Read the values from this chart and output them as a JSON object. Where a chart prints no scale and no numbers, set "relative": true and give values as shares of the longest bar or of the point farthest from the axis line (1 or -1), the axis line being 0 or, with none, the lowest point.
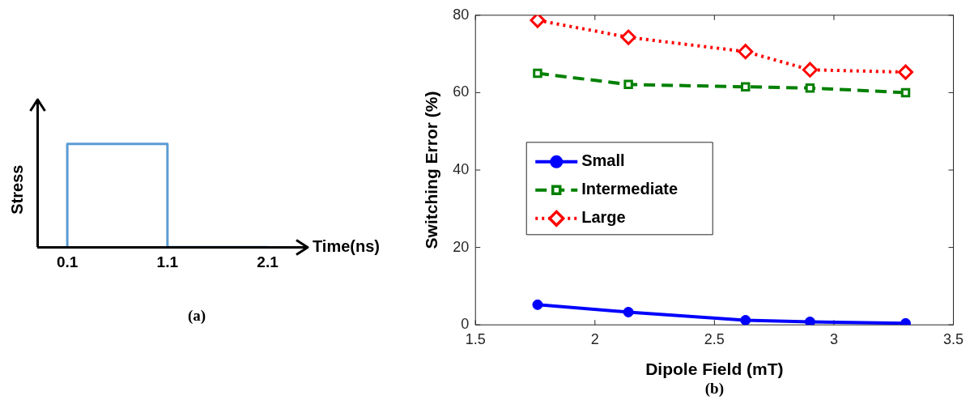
{
  "chart_data": [
    {
      "type": "step",
      "xlabel": "Time(ns)",
      "ylabel": "Stress",
      "relative": true,
      "xlim": [
        -0.2,
        2.5
      ],
      "xticks": [
        0.1,
        1.1,
        2.1
      ],
      "annotations": [
        "(a)"
      ],
      "series": [
        {
          "color": "#5b9bd5",
          "x": [
            0.1,
            1.1,
            2.1
          ],
          "values": [
            0,
            1,
            0
          ]
        }
      ]
    },
    {
      "type": "line",
      "xlabel": "Dipole Field (mT)",
      "ylabel": "Switching Error (%)",
      "xlim": [
        1.5,
        3.5
      ],
      "xticks": [
        1.5,
        2,
        2.5,
        3,
        3.5
      ],
      "ylim": [
        0,
        80
      ],
      "yticks": [
        0,
        20,
        40,
        60,
        80
      ],
      "grid": false,
      "legend": "left",
      "annotations": [
        "(b)"
      ],
      "x": [
        1.76,
        2.14,
        2.63,
        2.9,
        3.3
      ],
      "series": [
        {
          "name": "Small",
          "color": "#0000ff",
          "marker": "circle",
          "line_style": "solid",
          "values": [
            5.2,
            3.3,
            1.2,
            0.8,
            0.4
          ]
        },
        {
          "name": "Intermediate",
          "color": "#008000",
          "marker": "square",
          "line_style": "dashed",
          "values": [
            65,
            62.1,
            61.5,
            61.2,
            60
          ]
        },
        {
          "name": "Large",
          "color": "#ff0000",
          "marker": "diamond",
          "line_style": "dotted",
          "values": [
            78.7,
            74.3,
            70.6,
            65.9,
            65.3
          ]
        }
      ]
    }
  ]
}
